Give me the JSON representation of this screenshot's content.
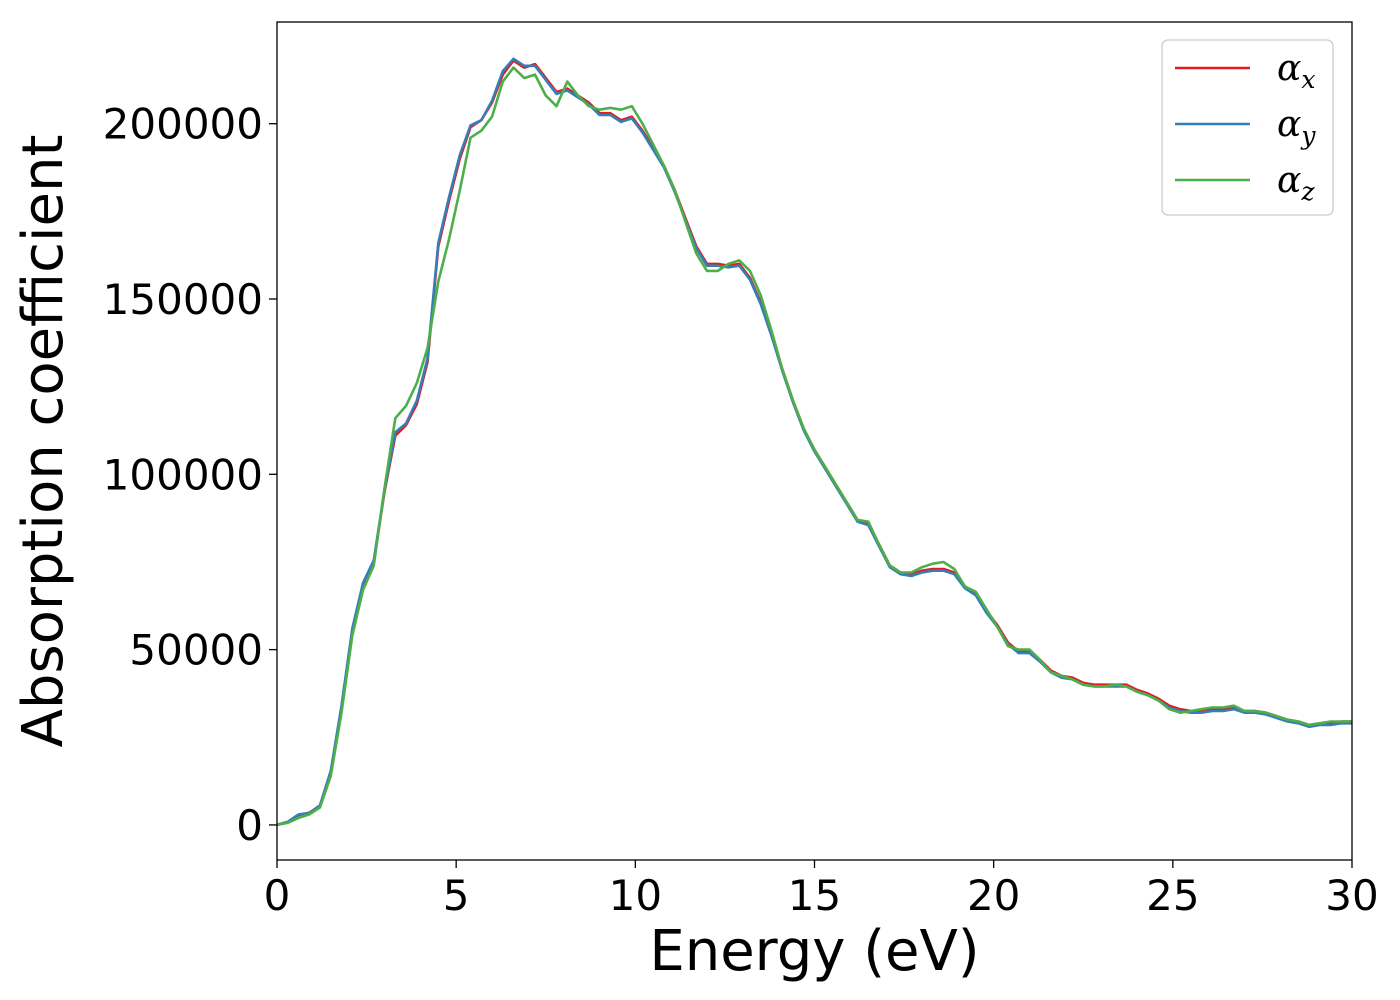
{
  "chart_data": {
    "type": "line",
    "title": "",
    "xlabel": "Energy (eV)",
    "ylabel": "Absorption coefficient",
    "xlim": [
      0,
      30
    ],
    "ylim": [
      -10000,
      229000
    ],
    "xticks": [
      0,
      5,
      10,
      15,
      20,
      25,
      30
    ],
    "xtick_labels": [
      "0",
      "5",
      "10",
      "15",
      "20",
      "25",
      "30"
    ],
    "yticks": [
      0,
      50000,
      100000,
      150000,
      200000
    ],
    "ytick_labels": [
      "0",
      "50000",
      "100000",
      "150000",
      "200000"
    ],
    "grid": false,
    "legend_position": "top-right",
    "series": [
      {
        "name": "α_x",
        "legend_base": "α",
        "legend_sub": "x",
        "color": "#e41a1c",
        "points": [
          [
            0,
            0
          ],
          [
            0.3,
            800
          ],
          [
            0.6,
            2800
          ],
          [
            0.9,
            3500
          ],
          [
            1.2,
            5500
          ],
          [
            1.5,
            15000
          ],
          [
            1.8,
            33000
          ],
          [
            2.1,
            55000
          ],
          [
            2.4,
            68000
          ],
          [
            2.7,
            75000
          ],
          [
            3.0,
            95000
          ],
          [
            3.3,
            111000
          ],
          [
            3.6,
            114000
          ],
          [
            3.9,
            120000
          ],
          [
            4.2,
            132000
          ],
          [
            4.5,
            165000
          ],
          [
            4.8,
            178000
          ],
          [
            5.1,
            190000
          ],
          [
            5.4,
            199000
          ],
          [
            5.7,
            201000
          ],
          [
            6.0,
            206000
          ],
          [
            6.3,
            214000
          ],
          [
            6.6,
            218000
          ],
          [
            6.9,
            216000
          ],
          [
            7.2,
            217000
          ],
          [
            7.5,
            213000
          ],
          [
            7.8,
            209000
          ],
          [
            8.1,
            210000
          ],
          [
            8.4,
            208000
          ],
          [
            8.7,
            206000
          ],
          [
            9.0,
            203000
          ],
          [
            9.3,
            203000
          ],
          [
            9.6,
            201000
          ],
          [
            9.9,
            202000
          ],
          [
            10.2,
            198000
          ],
          [
            10.5,
            193000
          ],
          [
            10.8,
            188000
          ],
          [
            11.1,
            181000
          ],
          [
            11.4,
            173000
          ],
          [
            11.7,
            165000
          ],
          [
            12.0,
            160000
          ],
          [
            12.3,
            160000
          ],
          [
            12.6,
            159500
          ],
          [
            12.9,
            160000
          ],
          [
            13.2,
            156000
          ],
          [
            13.5,
            149000
          ],
          [
            13.8,
            140000
          ],
          [
            14.1,
            130000
          ],
          [
            14.4,
            121000
          ],
          [
            14.7,
            113000
          ],
          [
            15.0,
            107000
          ],
          [
            15.3,
            102000
          ],
          [
            15.6,
            97000
          ],
          [
            15.9,
            92000
          ],
          [
            16.2,
            87000
          ],
          [
            16.5,
            86000
          ],
          [
            16.8,
            80000
          ],
          [
            17.1,
            74000
          ],
          [
            17.4,
            72000
          ],
          [
            17.7,
            71500
          ],
          [
            18.0,
            72500
          ],
          [
            18.3,
            73000
          ],
          [
            18.6,
            73000
          ],
          [
            18.9,
            72000
          ],
          [
            19.2,
            68000
          ],
          [
            19.5,
            66000
          ],
          [
            19.8,
            61000
          ],
          [
            20.1,
            57000
          ],
          [
            20.4,
            52000
          ],
          [
            20.7,
            49500
          ],
          [
            21.0,
            49500
          ],
          [
            21.3,
            47000
          ],
          [
            21.6,
            44000
          ],
          [
            21.9,
            42500
          ],
          [
            22.2,
            42000
          ],
          [
            22.5,
            40500
          ],
          [
            22.8,
            40000
          ],
          [
            23.1,
            40000
          ],
          [
            23.4,
            40000
          ],
          [
            23.7,
            40000
          ],
          [
            24.0,
            38500
          ],
          [
            24.3,
            37500
          ],
          [
            24.6,
            36000
          ],
          [
            24.9,
            34000
          ],
          [
            25.2,
            33000
          ],
          [
            25.5,
            32500
          ],
          [
            25.8,
            32500
          ],
          [
            26.1,
            33000
          ],
          [
            26.4,
            33000
          ],
          [
            26.7,
            33500
          ],
          [
            27.0,
            32500
          ],
          [
            27.3,
            32500
          ],
          [
            27.6,
            32000
          ],
          [
            27.9,
            31000
          ],
          [
            28.2,
            30000
          ],
          [
            28.5,
            29500
          ],
          [
            28.8,
            28500
          ],
          [
            29.1,
            29000
          ],
          [
            29.4,
            29000
          ],
          [
            29.7,
            29500
          ],
          [
            30.0,
            29500
          ]
        ]
      },
      {
        "name": "α_y",
        "legend_base": "α",
        "legend_sub": "y",
        "color": "#377eb8",
        "points": [
          [
            0,
            0
          ],
          [
            0.3,
            900
          ],
          [
            0.6,
            3000
          ],
          [
            0.9,
            3400
          ],
          [
            1.2,
            5600
          ],
          [
            1.5,
            15500
          ],
          [
            1.8,
            34000
          ],
          [
            2.1,
            56000
          ],
          [
            2.4,
            69000
          ],
          [
            2.7,
            75500
          ],
          [
            3.0,
            95500
          ],
          [
            3.3,
            112000
          ],
          [
            3.6,
            114500
          ],
          [
            3.9,
            121000
          ],
          [
            4.2,
            133000
          ],
          [
            4.5,
            166000
          ],
          [
            4.8,
            179000
          ],
          [
            5.1,
            191000
          ],
          [
            5.4,
            199500
          ],
          [
            5.7,
            201000
          ],
          [
            6.0,
            206500
          ],
          [
            6.3,
            215000
          ],
          [
            6.6,
            218500
          ],
          [
            6.9,
            216500
          ],
          [
            7.2,
            216500
          ],
          [
            7.5,
            212500
          ],
          [
            7.8,
            208500
          ],
          [
            8.1,
            209500
          ],
          [
            8.4,
            207500
          ],
          [
            8.7,
            205500
          ],
          [
            9.0,
            202500
          ],
          [
            9.3,
            202500
          ],
          [
            9.6,
            200500
          ],
          [
            9.9,
            201500
          ],
          [
            10.2,
            197500
          ],
          [
            10.5,
            192500
          ],
          [
            10.8,
            187500
          ],
          [
            11.1,
            180500
          ],
          [
            11.4,
            172500
          ],
          [
            11.7,
            164500
          ],
          [
            12.0,
            159500
          ],
          [
            12.3,
            159500
          ],
          [
            12.6,
            159000
          ],
          [
            12.9,
            159500
          ],
          [
            13.2,
            155500
          ],
          [
            13.5,
            148500
          ],
          [
            13.8,
            139500
          ],
          [
            14.1,
            129500
          ],
          [
            14.4,
            120500
          ],
          [
            14.7,
            112500
          ],
          [
            15.0,
            106500
          ],
          [
            15.3,
            101500
          ],
          [
            15.6,
            96500
          ],
          [
            15.9,
            91500
          ],
          [
            16.2,
            86500
          ],
          [
            16.5,
            85500
          ],
          [
            16.8,
            79500
          ],
          [
            17.1,
            73500
          ],
          [
            17.4,
            71500
          ],
          [
            17.7,
            71000
          ],
          [
            18.0,
            72000
          ],
          [
            18.3,
            72500
          ],
          [
            18.6,
            72500
          ],
          [
            18.9,
            71500
          ],
          [
            19.2,
            67500
          ],
          [
            19.5,
            65500
          ],
          [
            19.8,
            60500
          ],
          [
            20.1,
            56500
          ],
          [
            20.4,
            51500
          ],
          [
            20.7,
            49000
          ],
          [
            21.0,
            49000
          ],
          [
            21.3,
            46500
          ],
          [
            21.6,
            43500
          ],
          [
            21.9,
            42000
          ],
          [
            22.2,
            41500
          ],
          [
            22.5,
            40000
          ],
          [
            22.8,
            39500
          ],
          [
            23.1,
            39500
          ],
          [
            23.4,
            39500
          ],
          [
            23.7,
            39500
          ],
          [
            24.0,
            38000
          ],
          [
            24.3,
            37000
          ],
          [
            24.6,
            35500
          ],
          [
            24.9,
            33500
          ],
          [
            25.2,
            32500
          ],
          [
            25.5,
            32000
          ],
          [
            25.8,
            32000
          ],
          [
            26.1,
            32500
          ],
          [
            26.4,
            32500
          ],
          [
            26.7,
            33000
          ],
          [
            27.0,
            32000
          ],
          [
            27.3,
            32000
          ],
          [
            27.6,
            31500
          ],
          [
            27.9,
            30500
          ],
          [
            28.2,
            29500
          ],
          [
            28.5,
            29000
          ],
          [
            28.8,
            28000
          ],
          [
            29.1,
            28500
          ],
          [
            29.4,
            28500
          ],
          [
            29.7,
            29000
          ],
          [
            30.0,
            29000
          ]
        ]
      },
      {
        "name": "α_z",
        "legend_base": "α",
        "legend_sub": "z",
        "color": "#4daf4a",
        "points": [
          [
            0,
            0
          ],
          [
            0.3,
            600
          ],
          [
            0.6,
            2000
          ],
          [
            0.9,
            3000
          ],
          [
            1.2,
            5000
          ],
          [
            1.5,
            14000
          ],
          [
            1.8,
            32000
          ],
          [
            2.1,
            54000
          ],
          [
            2.4,
            67000
          ],
          [
            2.7,
            74000
          ],
          [
            3.0,
            96000
          ],
          [
            3.3,
            116000
          ],
          [
            3.6,
            119500
          ],
          [
            3.9,
            126000
          ],
          [
            4.2,
            136000
          ],
          [
            4.5,
            155000
          ],
          [
            4.8,
            167000
          ],
          [
            5.1,
            181000
          ],
          [
            5.4,
            196000
          ],
          [
            5.7,
            198000
          ],
          [
            6.0,
            202000
          ],
          [
            6.3,
            212000
          ],
          [
            6.6,
            216000
          ],
          [
            6.9,
            213000
          ],
          [
            7.2,
            214000
          ],
          [
            7.5,
            208000
          ],
          [
            7.8,
            205000
          ],
          [
            8.1,
            212000
          ],
          [
            8.4,
            208000
          ],
          [
            8.7,
            205000
          ],
          [
            9.0,
            204000
          ],
          [
            9.3,
            204500
          ],
          [
            9.6,
            204000
          ],
          [
            9.9,
            205000
          ],
          [
            10.2,
            200000
          ],
          [
            10.5,
            194000
          ],
          [
            10.8,
            188000
          ],
          [
            11.1,
            181000
          ],
          [
            11.4,
            172000
          ],
          [
            11.7,
            163000
          ],
          [
            12.0,
            158000
          ],
          [
            12.3,
            158000
          ],
          [
            12.6,
            160000
          ],
          [
            12.9,
            161000
          ],
          [
            13.2,
            158000
          ],
          [
            13.5,
            151000
          ],
          [
            13.8,
            141000
          ],
          [
            14.1,
            130000
          ],
          [
            14.4,
            121000
          ],
          [
            14.7,
            113000
          ],
          [
            15.0,
            107000
          ],
          [
            15.3,
            102000
          ],
          [
            15.6,
            97000
          ],
          [
            15.9,
            92000
          ],
          [
            16.2,
            87000
          ],
          [
            16.5,
            86500
          ],
          [
            16.8,
            80000
          ],
          [
            17.1,
            74000
          ],
          [
            17.4,
            72000
          ],
          [
            17.7,
            72000
          ],
          [
            18.0,
            73500
          ],
          [
            18.3,
            74500
          ],
          [
            18.6,
            75000
          ],
          [
            18.9,
            73000
          ],
          [
            19.2,
            68000
          ],
          [
            19.5,
            66500
          ],
          [
            19.8,
            61500
          ],
          [
            20.1,
            56500
          ],
          [
            20.4,
            51000
          ],
          [
            20.7,
            50000
          ],
          [
            21.0,
            50000
          ],
          [
            21.3,
            47000
          ],
          [
            21.6,
            43500
          ],
          [
            21.9,
            42500
          ],
          [
            22.2,
            41500
          ],
          [
            22.5,
            40000
          ],
          [
            22.8,
            39500
          ],
          [
            23.1,
            39500
          ],
          [
            23.4,
            40000
          ],
          [
            23.7,
            39500
          ],
          [
            24.0,
            38000
          ],
          [
            24.3,
            37000
          ],
          [
            24.6,
            35500
          ],
          [
            24.9,
            33000
          ],
          [
            25.2,
            32000
          ],
          [
            25.5,
            32500
          ],
          [
            25.8,
            33000
          ],
          [
            26.1,
            33500
          ],
          [
            26.4,
            33500
          ],
          [
            26.7,
            34000
          ],
          [
            27.0,
            32500
          ],
          [
            27.3,
            32500
          ],
          [
            27.6,
            32000
          ],
          [
            27.9,
            31000
          ],
          [
            28.2,
            30000
          ],
          [
            28.5,
            29500
          ],
          [
            28.8,
            28500
          ],
          [
            29.1,
            29000
          ],
          [
            29.4,
            29500
          ],
          [
            29.7,
            29500
          ],
          [
            30.0,
            29500
          ]
        ]
      }
    ]
  }
}
